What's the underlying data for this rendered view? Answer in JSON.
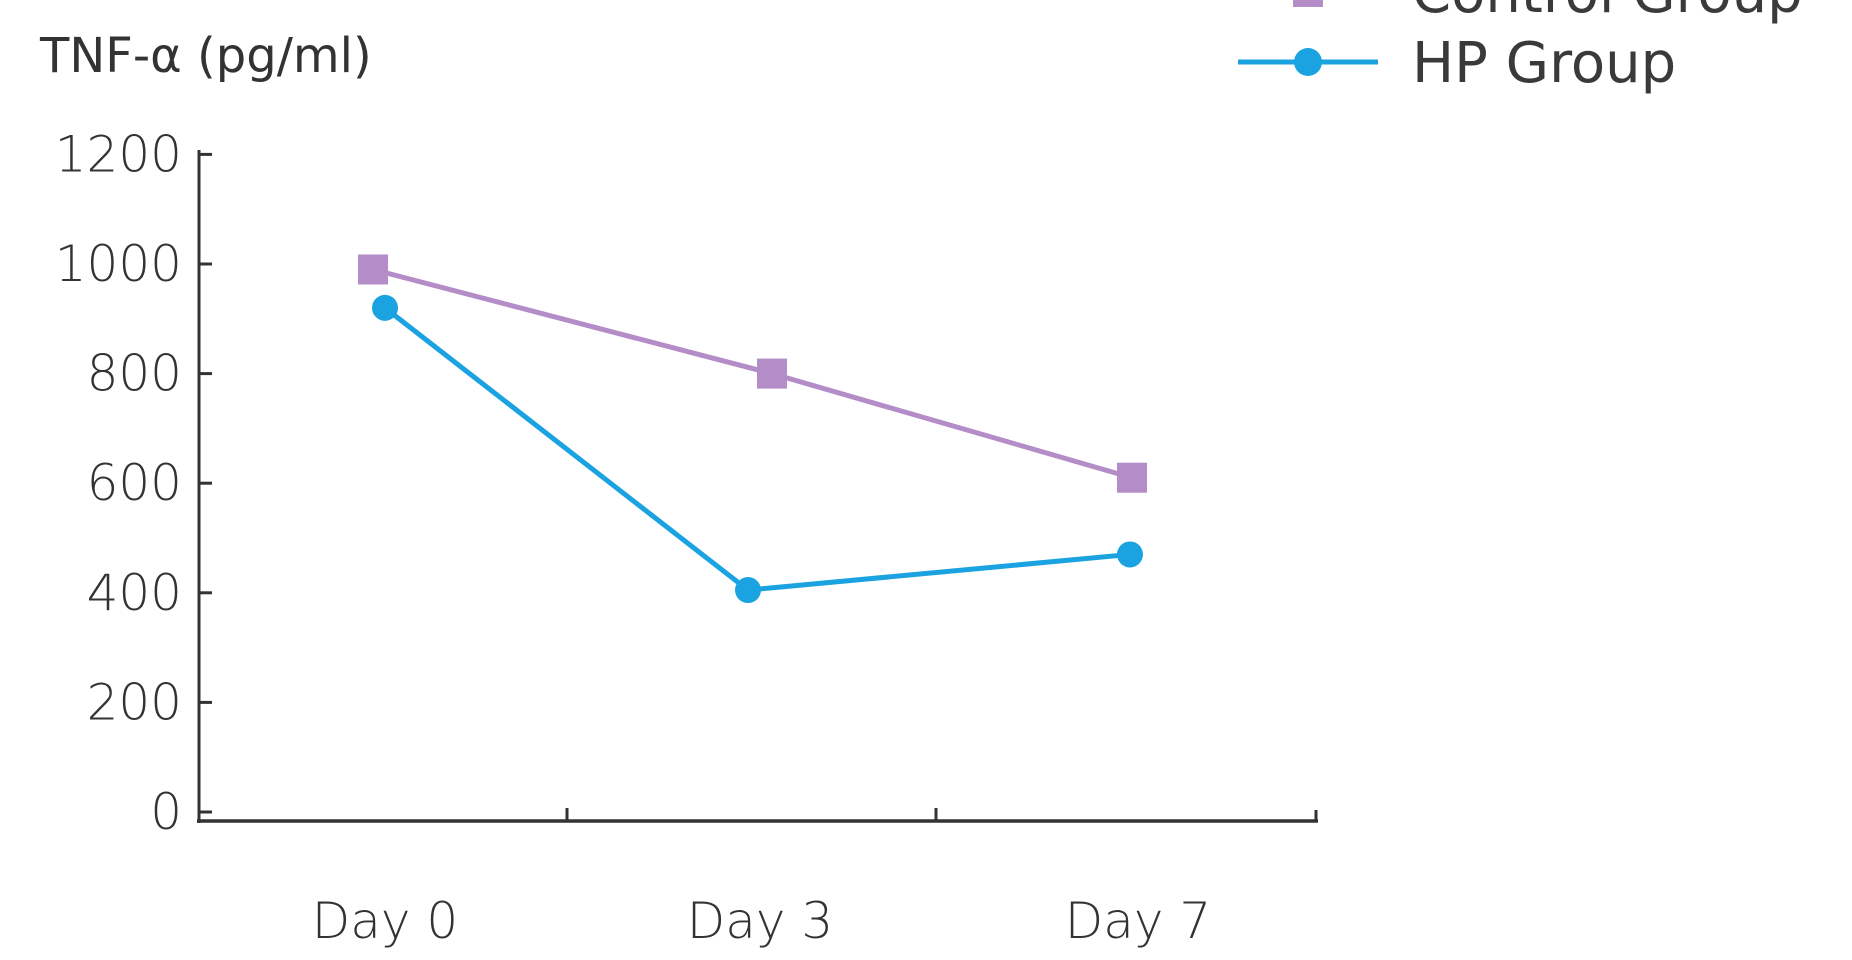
{
  "chart_data": {
    "type": "line",
    "title": "",
    "xlabel": "",
    "ylabel": "TNF-α (pg/ml)",
    "categories": [
      "Day 0",
      "Day 3",
      "Day 7"
    ],
    "yticks": [
      "0",
      "200",
      "400",
      "600",
      "800",
      "1000",
      "1200"
    ],
    "ylim": [
      0,
      1200
    ],
    "grid": false,
    "legend_position": "top-right",
    "series": [
      {
        "name": "Control Group",
        "values": [
          990,
          800,
          610
        ],
        "color": "#b48cc8",
        "marker": "square"
      },
      {
        "name": "HP Group",
        "values": [
          920,
          405,
          470
        ],
        "color": "#1aa3e0",
        "marker": "circle"
      }
    ]
  }
}
